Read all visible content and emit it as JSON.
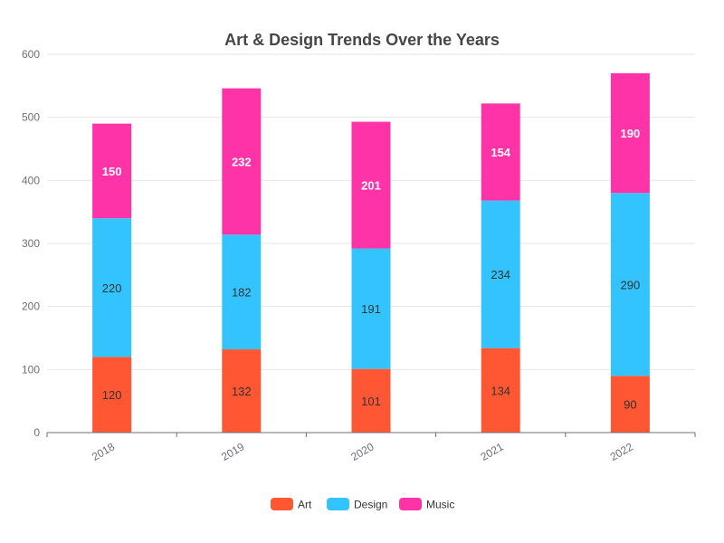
{
  "chart_data": {
    "type": "bar",
    "stacked": true,
    "title": "Art & Design Trends Over the Years",
    "xlabel": "",
    "ylabel": "",
    "categories": [
      "2018",
      "2019",
      "2020",
      "2021",
      "2022"
    ],
    "ylim": [
      0,
      600
    ],
    "yticks": [
      0,
      100,
      200,
      300,
      400,
      500,
      600
    ],
    "grid": true,
    "legend_position": "bottom",
    "series": [
      {
        "name": "Art",
        "color": "#ff5733",
        "values": [
          120,
          132,
          101,
          134,
          90
        ]
      },
      {
        "name": "Design",
        "color": "#33c4ff",
        "values": [
          220,
          182,
          191,
          234,
          290
        ]
      },
      {
        "name": "Music",
        "color": "#ff33a8",
        "values": [
          150,
          232,
          201,
          154,
          190
        ]
      }
    ]
  }
}
